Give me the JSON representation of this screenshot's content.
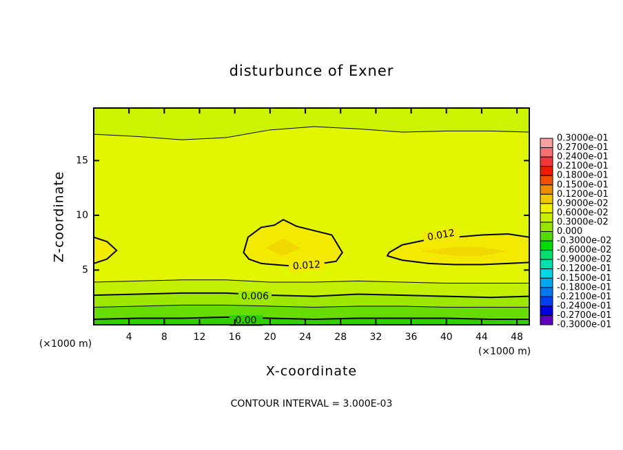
{
  "chart_data": {
    "type": "contour",
    "title": "disturbunce of Exner",
    "xlabel": "X-coordinate",
    "ylabel": "Z-coordinate",
    "xunit_left": "(×1000 m)",
    "xunit_right": "(×1000 m)",
    "annotation": "CONTOUR INTERVAL = 3.000E-03",
    "xlim": [
      0,
      49.4
    ],
    "ylim": [
      0,
      19.8
    ],
    "xticks": [
      4,
      8,
      12,
      16,
      20,
      24,
      28,
      32,
      36,
      40,
      44,
      48
    ],
    "yticks": [
      5,
      10,
      15
    ],
    "field_color": "#ccf400",
    "x": [
      0,
      5,
      10,
      15,
      20,
      25,
      30,
      35,
      40,
      45,
      49.4
    ],
    "lines": [
      {
        "values": [
          17.4,
          17.2,
          16.9,
          17.1,
          17.8,
          18.1,
          17.9,
          17.6,
          17.7,
          17.7,
          17.6
        ],
        "fill": "#e2f600",
        "width": 1
      },
      {
        "values": [
          3.9,
          4.0,
          4.1,
          4.1,
          3.9,
          3.9,
          4.0,
          3.9,
          3.8,
          3.8,
          3.8
        ],
        "fill": "#c2f000",
        "width": 1
      },
      {
        "values": [
          2.7,
          2.8,
          2.9,
          2.9,
          2.7,
          2.6,
          2.8,
          2.7,
          2.6,
          2.5,
          2.6
        ],
        "fill": "#9ee800",
        "width": 2,
        "label": "0.006"
      },
      {
        "values": [
          1.6,
          1.7,
          1.8,
          1.8,
          1.7,
          1.6,
          1.7,
          1.7,
          1.6,
          1.6,
          1.6
        ],
        "fill": "#66dc00",
        "width": 1
      },
      {
        "values": [
          0.5,
          0.6,
          0.6,
          0.7,
          0.6,
          0.5,
          0.6,
          0.6,
          0.6,
          0.5,
          0.5
        ],
        "fill": "#30d000",
        "width": 2,
        "label": "0.00"
      }
    ],
    "blobs": [
      {
        "x": [
          0,
          1.5,
          2.6,
          1.5,
          0
        ],
        "y": [
          8.0,
          7.6,
          6.8,
          6.0,
          5.6
        ],
        "fill": "#f4ea00",
        "width": 2
      },
      {
        "x": [
          17.0,
          17.5,
          19,
          20.5,
          21.5,
          23,
          25,
          27,
          28.2,
          27.5,
          25,
          22,
          19,
          17.6
        ],
        "y": [
          6.6,
          8.0,
          8.9,
          9.1,
          9.6,
          9.0,
          8.6,
          8.2,
          6.6,
          5.8,
          5.5,
          5.4,
          5.6,
          6.0
        ],
        "fill": "#f4ea00",
        "width": 2,
        "label": "0.012"
      },
      {
        "x": [
          33.5,
          35,
          38,
          41,
          44,
          47,
          49.4,
          49.4,
          47,
          44,
          41,
          38,
          35,
          33.3
        ],
        "y": [
          6.6,
          7.3,
          7.8,
          8.0,
          8.2,
          8.3,
          8.0,
          5.7,
          5.6,
          5.5,
          5.5,
          5.6,
          5.9,
          6.3
        ],
        "fill": "#f4ea00",
        "width": 2,
        "label": "0.012"
      }
    ],
    "shades": [
      {
        "x": [
          19.5,
          21.5,
          23.5,
          21.5
        ],
        "y": [
          7.0,
          7.9,
          7.0,
          6.3
        ],
        "fill": "#f0d800"
      },
      {
        "x": [
          37,
          41,
          44,
          47,
          44,
          41
        ],
        "y": [
          6.7,
          7.1,
          7.1,
          6.7,
          6.3,
          6.3
        ],
        "fill": "#f0d800"
      }
    ],
    "colorbar": {
      "levels": [
        {
          "value": 0.03,
          "label": "0.3000e-01"
        },
        {
          "value": 0.027,
          "label": "0.2700e-01"
        },
        {
          "value": 0.024,
          "label": "0.2400e-01"
        },
        {
          "value": 0.021,
          "label": "0.2100e-01"
        },
        {
          "value": 0.018,
          "label": "0.1800e-01"
        },
        {
          "value": 0.015,
          "label": "0.1500e-01"
        },
        {
          "value": 0.012,
          "label": "0.1200e-01"
        },
        {
          "value": 0.009,
          "label": "0.9000e-02"
        },
        {
          "value": 0.006,
          "label": "0.6000e-02"
        },
        {
          "value": 0.003,
          "label": "0.3000e-02"
        },
        {
          "value": 0,
          "label": "0.000"
        },
        {
          "value": -0.003,
          "label": "-0.3000e-02"
        },
        {
          "value": -0.006,
          "label": "-0.6000e-02"
        },
        {
          "value": -0.009,
          "label": "-0.9000e-02"
        },
        {
          "value": -0.012,
          "label": "-0.1200e-01"
        },
        {
          "value": -0.015,
          "label": "-0.1500e-01"
        },
        {
          "value": -0.018,
          "label": "-0.1800e-01"
        },
        {
          "value": -0.021,
          "label": "-0.2100e-01"
        },
        {
          "value": -0.024,
          "label": "-0.2400e-01"
        },
        {
          "value": -0.027,
          "label": "-0.2700e-01"
        },
        {
          "value": -0.03,
          "label": "-0.3000e-01"
        }
      ],
      "colors": [
        "#f8a0a0",
        "#f87070",
        "#f03838",
        "#f01c00",
        "#f05000",
        "#f08c00",
        "#f0c800",
        "#f0f000",
        "#c8f000",
        "#96e600",
        "#50dc00",
        "#00dc00",
        "#00e070",
        "#00e0b0",
        "#00d8e8",
        "#00a8f0",
        "#0078f0",
        "#0040f0",
        "#0000e0",
        "#6000c0"
      ]
    }
  }
}
